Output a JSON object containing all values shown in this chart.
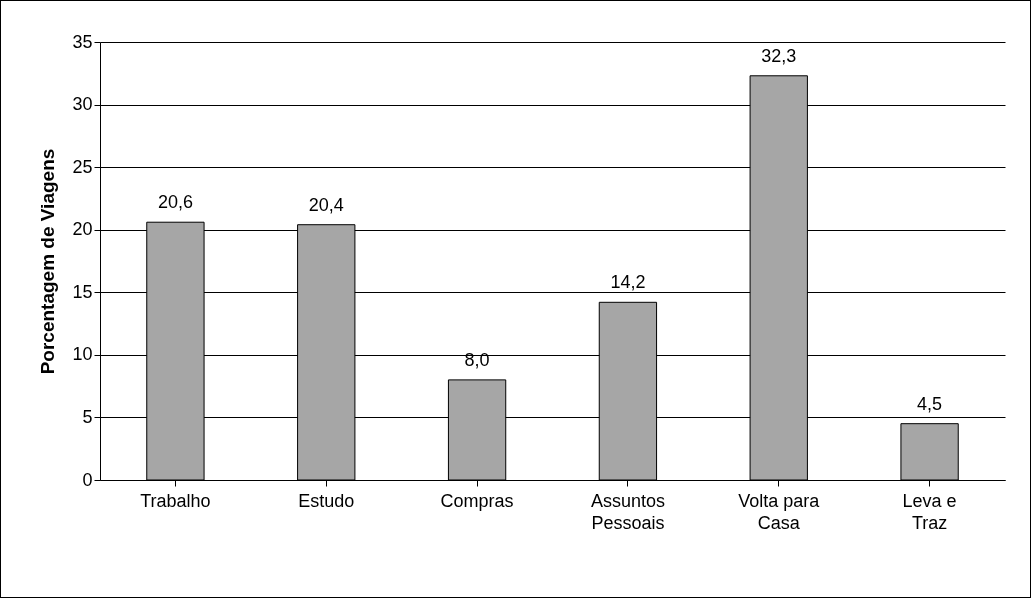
{
  "chart_data": {
    "type": "bar",
    "ylabel": "Porcentagem de Viagens",
    "categories": [
      "Trabalho",
      "Estudo",
      "Compras",
      "Assuntos\nPessoais",
      "Volta para\nCasa",
      "Leva e\nTraz"
    ],
    "values": [
      20.6,
      20.4,
      8.0,
      14.2,
      32.3,
      4.5
    ],
    "value_labels": [
      "20,6",
      "20,4",
      "8,0",
      "14,2",
      "32,3",
      "4,5"
    ],
    "color": "#a6a6a6",
    "ylim": [
      0,
      35
    ],
    "yticks": [
      0,
      5,
      10,
      15,
      20,
      25,
      30,
      35
    ],
    "grid": "y"
  }
}
